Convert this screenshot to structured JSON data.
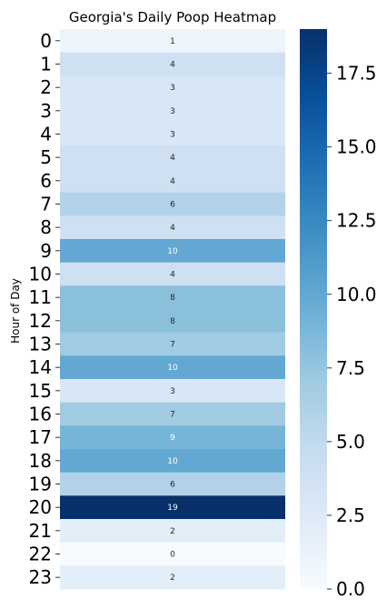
{
  "chart_data": {
    "type": "heatmap",
    "title": "Georgia's Daily Poop Heatmap",
    "ylabel": "Hour of Day",
    "xlabel": "",
    "categories": [
      "0",
      "1",
      "2",
      "3",
      "4",
      "5",
      "6",
      "7",
      "8",
      "9",
      "10",
      "11",
      "12",
      "13",
      "14",
      "15",
      "16",
      "17",
      "18",
      "19",
      "20",
      "21",
      "22",
      "23"
    ],
    "values": [
      1,
      4,
      3,
      3,
      3,
      4,
      4,
      6,
      4,
      10,
      4,
      8,
      8,
      7,
      10,
      3,
      7,
      9,
      10,
      6,
      19,
      2,
      0,
      2
    ],
    "annotations": [
      "1",
      "4",
      "3",
      "3",
      "3",
      "4",
      "4",
      "6",
      "4",
      "10",
      "4",
      "8",
      "8",
      "7",
      "10",
      "3",
      "7",
      "9",
      "10",
      "6",
      "19",
      "2",
      "0",
      "2"
    ],
    "colormap": "Blues",
    "vmin": 0,
    "vmax": 19,
    "colorbar": {
      "ticks": [
        0.0,
        2.5,
        5.0,
        7.5,
        10.0,
        12.5,
        15.0,
        17.5
      ],
      "tick_labels": [
        "0.0",
        "2.5",
        "5.0",
        "7.5",
        "10.0",
        "12.5",
        "15.0",
        "17.5"
      ]
    },
    "grid": false,
    "legend": "colorbar-right"
  }
}
